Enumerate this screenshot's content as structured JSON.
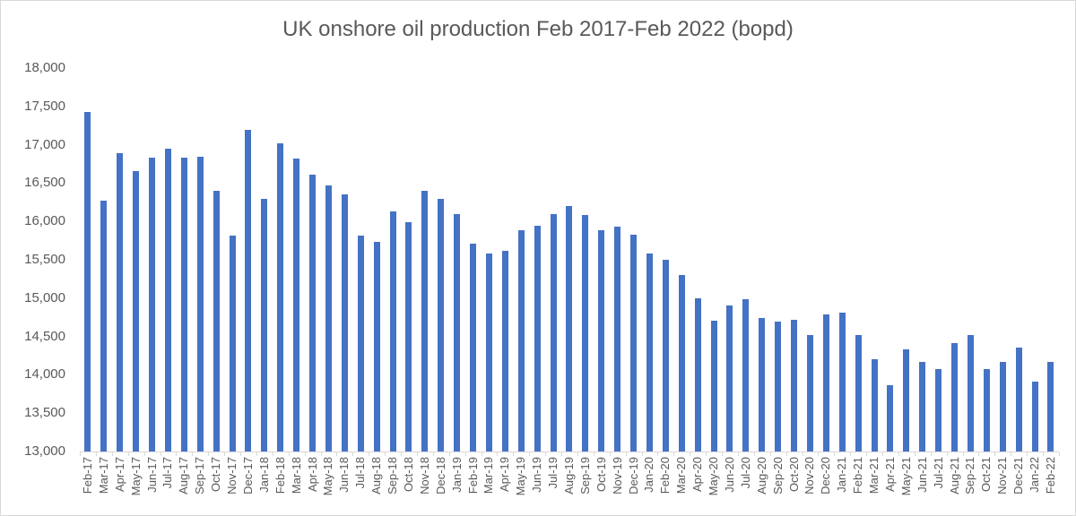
{
  "chart_data": {
    "type": "bar",
    "title": "UK onshore oil production Feb 2017-Feb 2022 (bopd)",
    "xlabel": "",
    "ylabel": "",
    "ylim": [
      13000,
      18000
    ],
    "ytick_step": 500,
    "grid": false,
    "legend": false,
    "bar_color": "#4472C4",
    "axis_color": "#D9D9D9",
    "text_color": "#595959",
    "categories": [
      "Feb-17",
      "Mar-17",
      "Apr-17",
      "May-17",
      "Jun-17",
      "Jul-17",
      "Aug-17",
      "Sep-17",
      "Oct-17",
      "Nov-17",
      "Dec-17",
      "Jan-18",
      "Feb-18",
      "Mar-18",
      "Apr-18",
      "May-18",
      "Jun-18",
      "Jul-18",
      "Aug-18",
      "Sep-18",
      "Oct-18",
      "Nov-18",
      "Dec-18",
      "Jan-19",
      "Feb-19",
      "Mar-19",
      "Apr-19",
      "May-19",
      "Jun-19",
      "Jul-19",
      "Aug-19",
      "Sep-19",
      "Oct-19",
      "Nov-19",
      "Dec-19",
      "Jan-20",
      "Feb-20",
      "Mar-20",
      "Apr-20",
      "May-20",
      "Jun-20",
      "Jul-20",
      "Aug-20",
      "Sep-20",
      "Oct-20",
      "Nov-20",
      "Dec-20",
      "Jan-21",
      "Feb-21",
      "Mar-21",
      "Apr-21",
      "May-21",
      "Jun-21",
      "Jul-21",
      "Aug-21",
      "Sep-21",
      "Oct-21",
      "Nov-21",
      "Dec-21",
      "Jan-22",
      "Feb-22"
    ],
    "values": [
      17430,
      16270,
      16890,
      16660,
      16830,
      16950,
      16830,
      16840,
      16400,
      15810,
      17190,
      16300,
      17020,
      16820,
      16610,
      16470,
      16350,
      15820,
      15730,
      16130,
      15990,
      16400,
      16300,
      16100,
      15710,
      15580,
      15620,
      15890,
      15940,
      16100,
      16200,
      16080,
      15890,
      15930,
      15830,
      15580,
      15500,
      15300,
      15000,
      14710,
      14900,
      14990,
      14740,
      14690,
      14720,
      14520,
      14790,
      14810,
      14520,
      14200,
      13860,
      14330,
      14170,
      14080,
      14410,
      14520,
      14080,
      14170,
      14350,
      13910,
      14170
    ]
  }
}
